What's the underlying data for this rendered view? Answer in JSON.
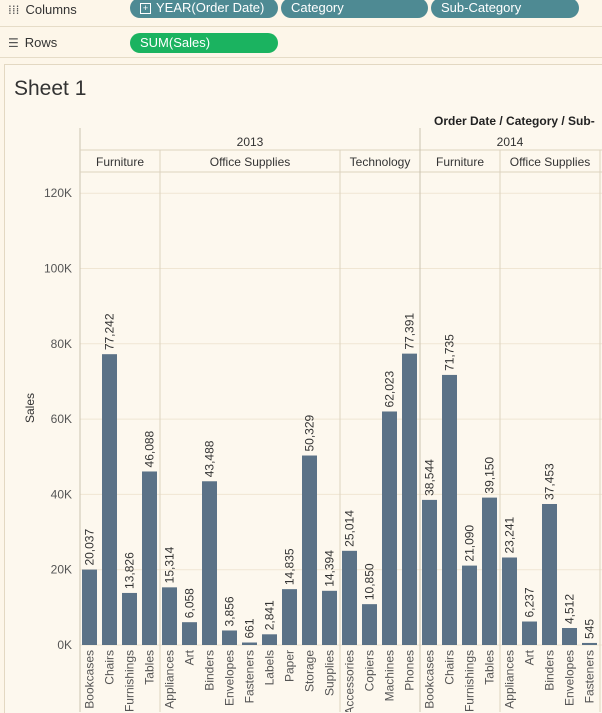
{
  "shelves": {
    "columns": {
      "label": "Columns",
      "pills": [
        "YEAR(Order Date)",
        "Category",
        "Sub-Category"
      ]
    },
    "rows": {
      "label": "Rows",
      "pills": [
        "SUM(Sales)"
      ]
    }
  },
  "sheet": {
    "title": "Sheet 1",
    "header_path": "Order Date / Category / Sub-"
  },
  "colors": {
    "bar": "#5b7287",
    "dimension_pill": "#4e8a93",
    "measure_pill": "#1bb360",
    "background": "#fdf6e9"
  },
  "chart_data": {
    "type": "bar",
    "ylabel": "Sales",
    "ylim": [
      0,
      125000
    ],
    "yticks": [
      {
        "value": 0,
        "label": "0K"
      },
      {
        "value": 20000,
        "label": "20K"
      },
      {
        "value": 40000,
        "label": "40K"
      },
      {
        "value": 60000,
        "label": "60K"
      },
      {
        "value": 80000,
        "label": "80K"
      },
      {
        "value": 100000,
        "label": "100K"
      },
      {
        "value": 120000,
        "label": "120K"
      }
    ],
    "years": [
      {
        "year": "2013",
        "categories": [
          {
            "name": "Furniture",
            "bars": [
              {
                "sub": "Bookcases",
                "value": 20037,
                "label": "20,037"
              },
              {
                "sub": "Chairs",
                "value": 77242,
                "label": "77,242"
              },
              {
                "sub": "Furnishings",
                "value": 13826,
                "label": "13,826"
              },
              {
                "sub": "Tables",
                "value": 46088,
                "label": "46,088"
              }
            ]
          },
          {
            "name": "Office Supplies",
            "bars": [
              {
                "sub": "Appliances",
                "value": 15314,
                "label": "15,314"
              },
              {
                "sub": "Art",
                "value": 6058,
                "label": "6,058"
              },
              {
                "sub": "Binders",
                "value": 43488,
                "label": "43,488"
              },
              {
                "sub": "Envelopes",
                "value": 3856,
                "label": "3,856"
              },
              {
                "sub": "Fasteners",
                "value": 661,
                "label": "661"
              },
              {
                "sub": "Labels",
                "value": 2841,
                "label": "2,841"
              },
              {
                "sub": "Paper",
                "value": 14835,
                "label": "14,835"
              },
              {
                "sub": "Storage",
                "value": 50329,
                "label": "50,329"
              },
              {
                "sub": "Supplies",
                "value": 14394,
                "label": "14,394"
              }
            ]
          },
          {
            "name": "Technology",
            "bars": [
              {
                "sub": "Accessories",
                "value": 25014,
                "label": "25,014"
              },
              {
                "sub": "Copiers",
                "value": 10850,
                "label": "10,850"
              },
              {
                "sub": "Machines",
                "value": 62023,
                "label": "62,023"
              },
              {
                "sub": "Phones",
                "value": 77391,
                "label": "77,391"
              }
            ]
          }
        ]
      },
      {
        "year": "2014",
        "categories": [
          {
            "name": "Furniture",
            "bars": [
              {
                "sub": "Bookcases",
                "value": 38544,
                "label": "38,544"
              },
              {
                "sub": "Chairs",
                "value": 71735,
                "label": "71,735"
              },
              {
                "sub": "Furnishings",
                "value": 21090,
                "label": "21,090"
              },
              {
                "sub": "Tables",
                "value": 39150,
                "label": "39,150"
              }
            ]
          },
          {
            "name": "Office Supplies",
            "bars": [
              {
                "sub": "Appliances",
                "value": 23241,
                "label": "23,241"
              },
              {
                "sub": "Art",
                "value": 6237,
                "label": "6,237"
              },
              {
                "sub": "Binders",
                "value": 37453,
                "label": "37,453"
              },
              {
                "sub": "Envelopes",
                "value": 4512,
                "label": "4,512"
              },
              {
                "sub": "Fasteners",
                "value": 545,
                "label": "545"
              }
            ]
          }
        ]
      }
    ]
  }
}
